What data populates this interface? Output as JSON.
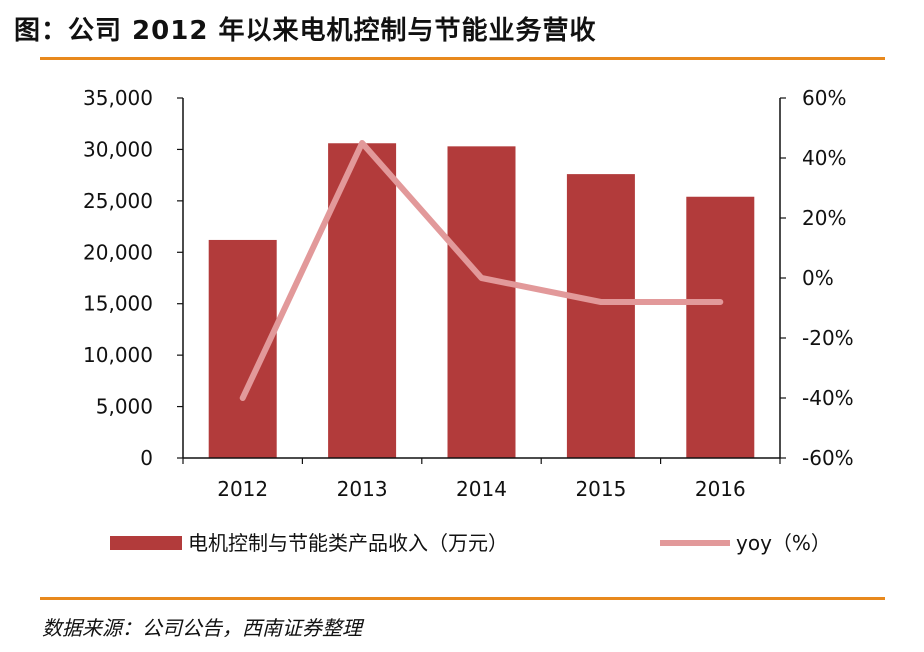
{
  "title": "图：公司 2012 年以来电机控制与节能业务营收",
  "source": "数据来源：公司公告，西南证券整理",
  "colors": {
    "bar": "#b23b3b",
    "line": "#e2999a",
    "axis": "#111111",
    "rule": "#e8891d"
  },
  "chart_data": {
    "type": "bar",
    "categories": [
      "2012",
      "2013",
      "2014",
      "2015",
      "2016"
    ],
    "series": [
      {
        "name": "电机控制与节能类产品收入（万元）",
        "type": "bar",
        "axis": "left",
        "values": [
          21200,
          30600,
          30300,
          27600,
          25400
        ]
      },
      {
        "name": "yoy（%）",
        "type": "line",
        "axis": "right",
        "values": [
          -40,
          45,
          0,
          -8,
          -8
        ]
      }
    ],
    "y_left": {
      "min": 0,
      "max": 35000,
      "ticks": [
        0,
        5000,
        10000,
        15000,
        20000,
        25000,
        30000,
        35000
      ],
      "tick_labels": [
        "0",
        "5,000",
        "10,000",
        "15,000",
        "20,000",
        "25,000",
        "30,000",
        "35,000"
      ]
    },
    "y_right": {
      "min": -60,
      "max": 60,
      "ticks": [
        -60,
        -40,
        -20,
        0,
        20,
        40,
        60
      ],
      "tick_labels": [
        "-60%",
        "-40%",
        "-20%",
        "0%",
        "20%",
        "40%",
        "60%"
      ]
    },
    "legend": [
      {
        "label": "电机控制与节能类产品收入（万元）",
        "kind": "bar"
      },
      {
        "label": "yoy（%）",
        "kind": "line"
      }
    ],
    "legend_position": "bottom",
    "grid": false
  }
}
